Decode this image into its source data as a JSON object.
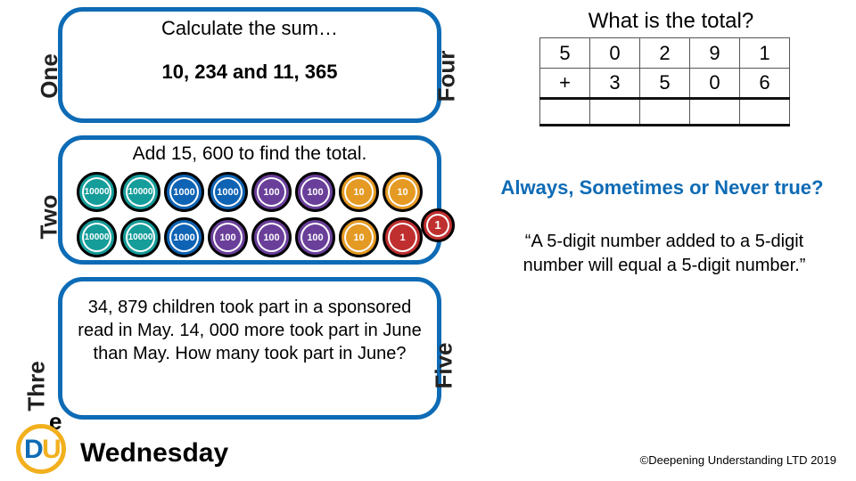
{
  "labels": {
    "one": "One",
    "two": "Two",
    "three": "Thre",
    "three_e": "e",
    "four": "Four",
    "five": "Five"
  },
  "q1": {
    "title": "Calculate the sum…",
    "body": "10, 234 and 11, 365"
  },
  "q2": {
    "title": "Add 15, 600 to find the total.",
    "discs": {
      "row1": [
        {
          "v": "10000",
          "c": "teal"
        },
        {
          "v": "10000",
          "c": "teal"
        },
        {
          "v": "1000",
          "c": "blue"
        },
        {
          "v": "1000",
          "c": "blue"
        },
        {
          "v": "100",
          "c": "purple"
        },
        {
          "v": "100",
          "c": "purple"
        },
        {
          "v": "10",
          "c": "orange"
        },
        {
          "v": "10",
          "c": "orange"
        }
      ],
      "row1_hang": {
        "v": "1",
        "c": "red"
      },
      "row2": [
        {
          "v": "10000",
          "c": "teal"
        },
        {
          "v": "10000",
          "c": "teal"
        },
        {
          "v": "1000",
          "c": "blue"
        },
        {
          "v": "100",
          "c": "purple"
        },
        {
          "v": "100",
          "c": "purple"
        },
        {
          "v": "100",
          "c": "purple"
        },
        {
          "v": "10",
          "c": "orange"
        },
        {
          "v": "1",
          "c": "red"
        }
      ]
    }
  },
  "q3": {
    "body": "34, 879 children took part in a sponsored read in May. 14, 000 more took part in June than May. How many took part in June?"
  },
  "q4": {
    "title": "What is the total?",
    "table": {
      "r1": [
        "5",
        "0",
        "2",
        "9",
        "1"
      ],
      "r2": [
        "+",
        "3",
        "5",
        "0",
        "6"
      ],
      "colors": {
        "border": "#555555",
        "rule": "#111111"
      }
    }
  },
  "q5": {
    "title": "Always, Sometimes or Never true?",
    "body": "“A 5-digit number added to a 5-digit number will equal a 5-digit number.”"
  },
  "footer": {
    "day": "Wednesday",
    "copyright": "©Deepening Understanding LTD 2019"
  },
  "theme": {
    "box_border": "#0e6bb5",
    "title_blue": "#0e6bb5",
    "disc_colors": {
      "teal": "#159d9a",
      "blue": "#0e63b4",
      "purple": "#6a3f9a",
      "orange": "#e59a24",
      "red": "#c02f2f"
    }
  }
}
